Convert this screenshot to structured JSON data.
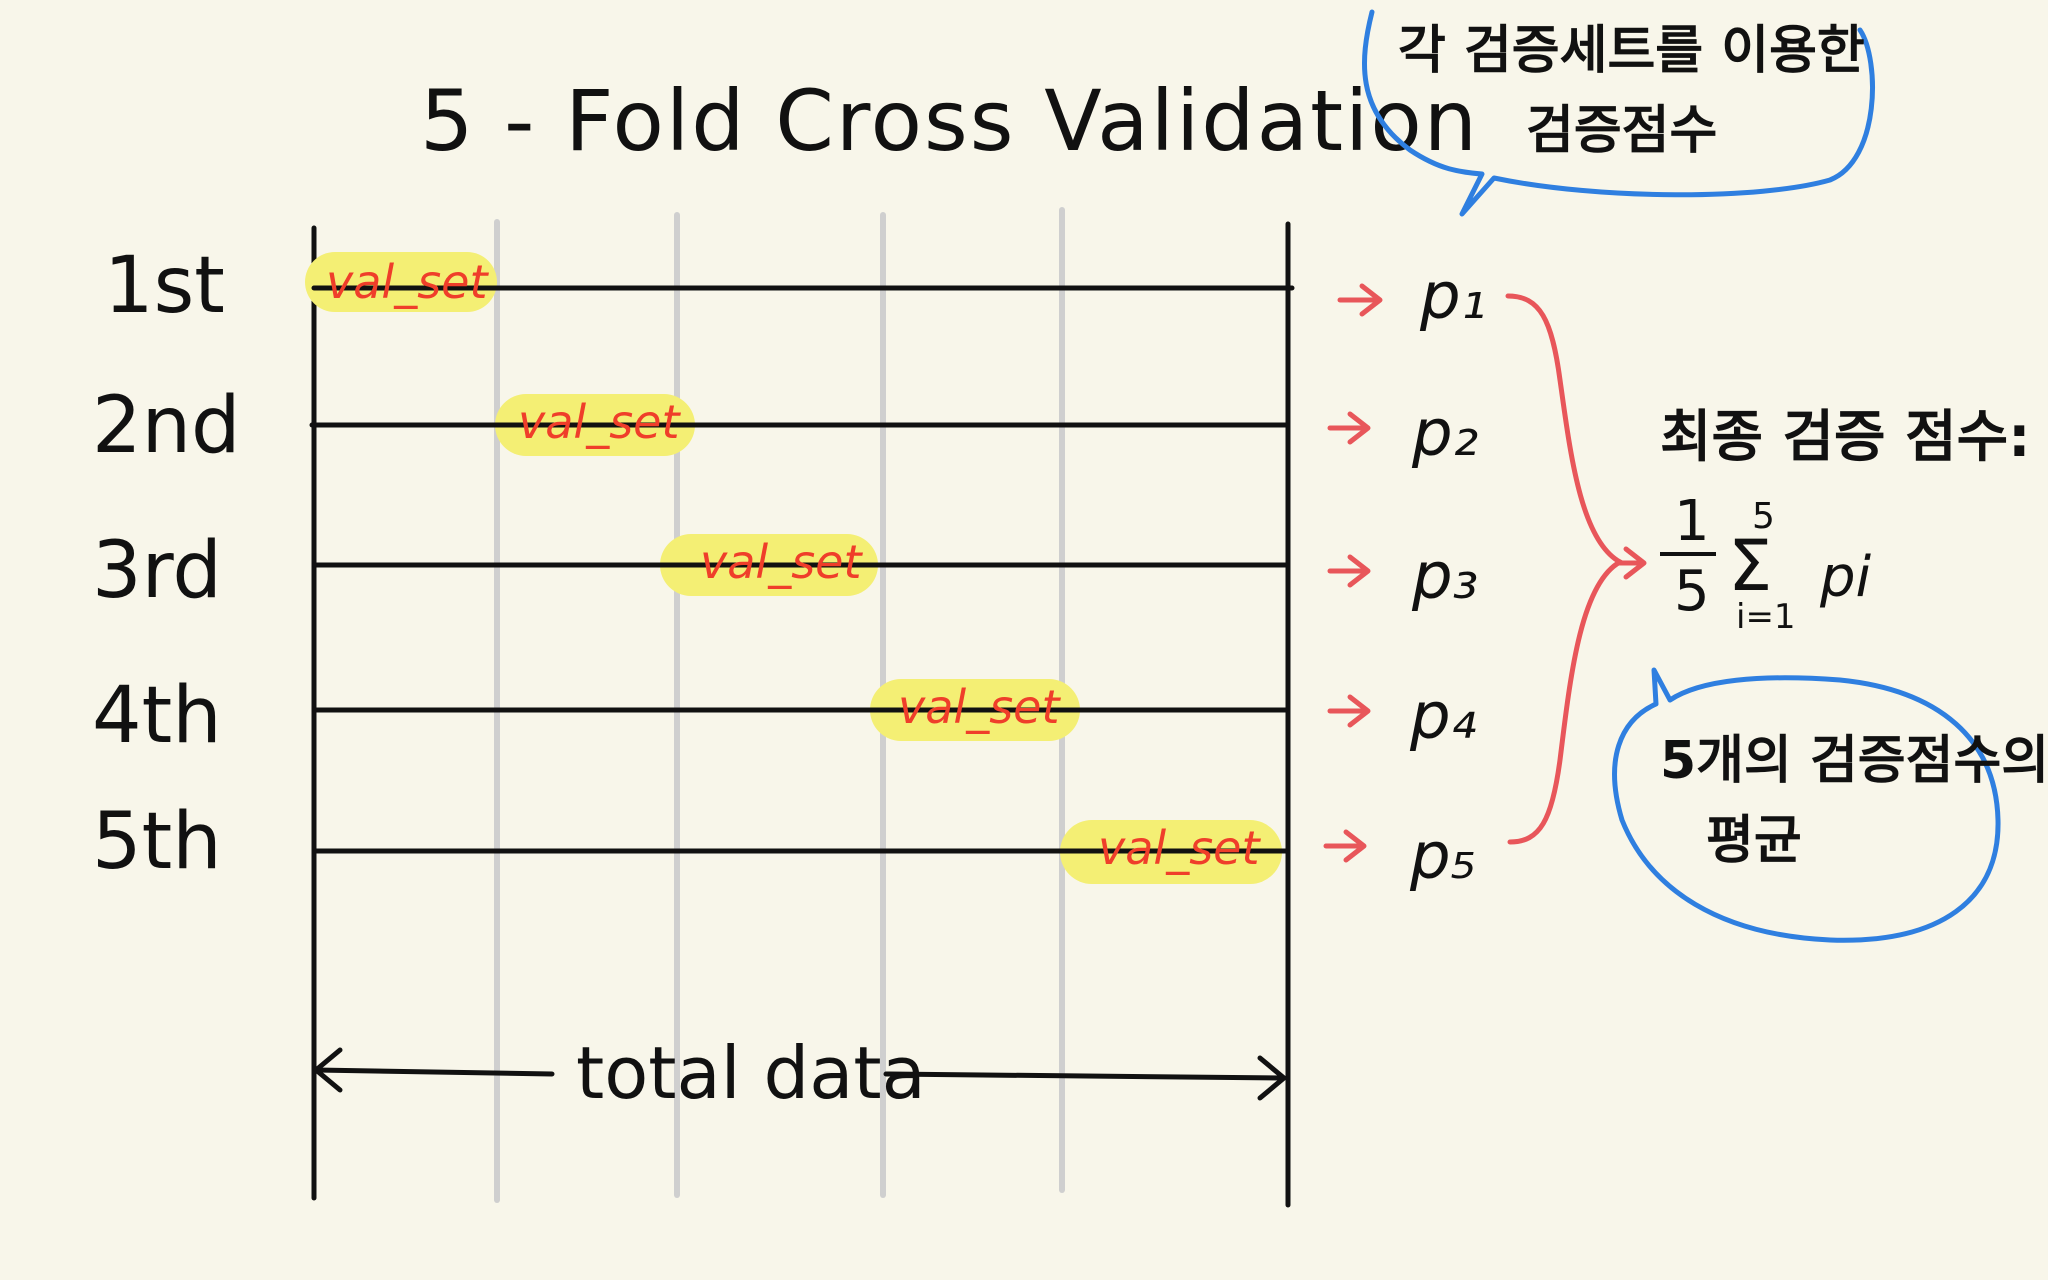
{
  "title": "5 - Fold Cross Validation",
  "folds": [
    {
      "label": "1st",
      "val_label": "val_set",
      "score": "p₁"
    },
    {
      "label": "2nd",
      "val_label": "val_set",
      "score": "p₂"
    },
    {
      "label": "3rd",
      "val_label": "val_set",
      "score": "p₃"
    },
    {
      "label": "4th",
      "val_label": "val_set",
      "score": "p₄"
    },
    {
      "label": "5th",
      "val_label": "val_set",
      "score": "p₅"
    }
  ],
  "bubble_top": {
    "line1": "각 검증세트를 이용한",
    "line2": "검증점수"
  },
  "final_score": {
    "label": "최종 검증 점수:",
    "frac_num": "1",
    "frac_den": "5",
    "sum_top": "5",
    "sum_symbol": "Σ",
    "sum_bottom": "i=1",
    "term": "pi"
  },
  "bubble_bottom": {
    "line1": "5개의 검증점수의",
    "line2": "평균"
  },
  "axis_label": "total data",
  "colors": {
    "background": "#f8f6ea",
    "ink": "#111111",
    "highlight": "#f4ef74",
    "val_text": "#ef3e2a",
    "arrow": "#e8565a",
    "bubble": "#2f7fe0",
    "grid": "#cfcfcf"
  }
}
